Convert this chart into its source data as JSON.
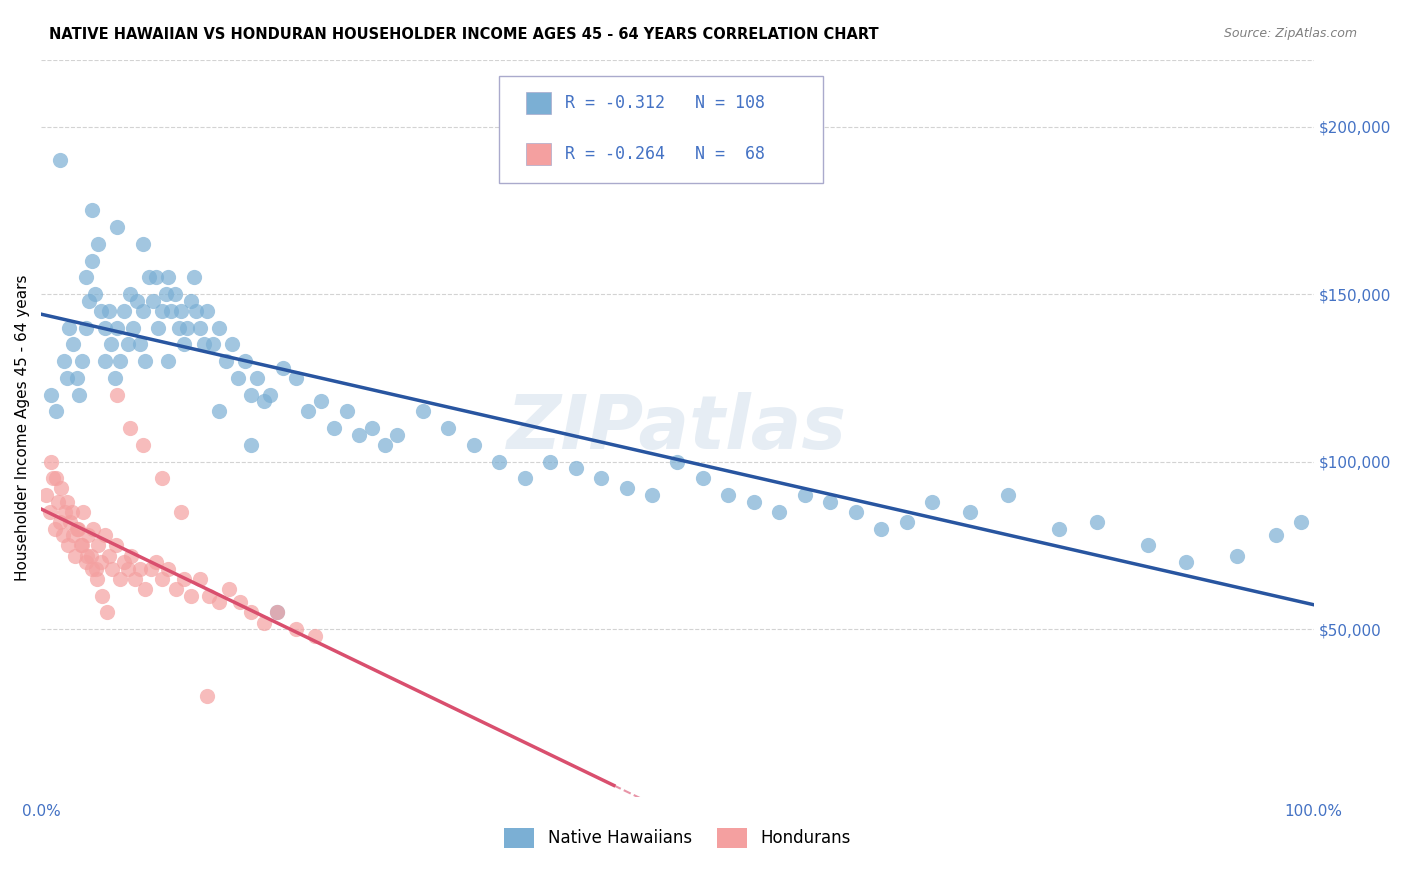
{
  "title": "NATIVE HAWAIIAN VS HONDURAN HOUSEHOLDER INCOME AGES 45 - 64 YEARS CORRELATION CHART",
  "source": "Source: ZipAtlas.com",
  "ylabel": "Householder Income Ages 45 - 64 years",
  "xlim": [
    0.0,
    1.0
  ],
  "ylim": [
    0,
    220000
  ],
  "legend_blue_R": "-0.312",
  "legend_blue_N": "108",
  "legend_pink_R": "-0.264",
  "legend_pink_N": "68",
  "blue_color": "#7bafd4",
  "pink_color": "#f4a0a0",
  "blue_line_color": "#2855a0",
  "pink_line_color": "#d94f6e",
  "tick_color": "#4472c4",
  "watermark": "ZIPatlas",
  "blue_scatter_x": [
    0.008,
    0.012,
    0.018,
    0.02,
    0.022,
    0.025,
    0.028,
    0.03,
    0.032,
    0.035,
    0.035,
    0.038,
    0.04,
    0.042,
    0.045,
    0.047,
    0.05,
    0.05,
    0.053,
    0.055,
    0.058,
    0.06,
    0.062,
    0.065,
    0.068,
    0.07,
    0.072,
    0.075,
    0.078,
    0.08,
    0.082,
    0.085,
    0.088,
    0.09,
    0.092,
    0.095,
    0.098,
    0.1,
    0.102,
    0.105,
    0.108,
    0.11,
    0.112,
    0.115,
    0.118,
    0.12,
    0.122,
    0.125,
    0.128,
    0.13,
    0.135,
    0.14,
    0.145,
    0.15,
    0.155,
    0.16,
    0.165,
    0.17,
    0.175,
    0.18,
    0.19,
    0.2,
    0.21,
    0.22,
    0.23,
    0.24,
    0.25,
    0.26,
    0.27,
    0.28,
    0.3,
    0.32,
    0.34,
    0.36,
    0.38,
    0.4,
    0.42,
    0.44,
    0.46,
    0.48,
    0.5,
    0.52,
    0.54,
    0.56,
    0.58,
    0.6,
    0.62,
    0.64,
    0.66,
    0.68,
    0.7,
    0.73,
    0.76,
    0.8,
    0.83,
    0.87,
    0.9,
    0.94,
    0.97,
    0.99,
    0.015,
    0.04,
    0.06,
    0.08,
    0.1,
    0.14,
    0.165,
    0.185
  ],
  "blue_scatter_y": [
    120000,
    115000,
    130000,
    125000,
    140000,
    135000,
    125000,
    120000,
    130000,
    140000,
    155000,
    148000,
    160000,
    150000,
    165000,
    145000,
    140000,
    130000,
    145000,
    135000,
    125000,
    140000,
    130000,
    145000,
    135000,
    150000,
    140000,
    148000,
    135000,
    145000,
    130000,
    155000,
    148000,
    155000,
    140000,
    145000,
    150000,
    155000,
    145000,
    150000,
    140000,
    145000,
    135000,
    140000,
    148000,
    155000,
    145000,
    140000,
    135000,
    145000,
    135000,
    140000,
    130000,
    135000,
    125000,
    130000,
    120000,
    125000,
    118000,
    120000,
    128000,
    125000,
    115000,
    118000,
    110000,
    115000,
    108000,
    110000,
    105000,
    108000,
    115000,
    110000,
    105000,
    100000,
    95000,
    100000,
    98000,
    95000,
    92000,
    90000,
    100000,
    95000,
    90000,
    88000,
    85000,
    90000,
    88000,
    85000,
    80000,
    82000,
    88000,
    85000,
    90000,
    80000,
    82000,
    75000,
    70000,
    72000,
    78000,
    82000,
    190000,
    175000,
    170000,
    165000,
    130000,
    115000,
    105000,
    55000
  ],
  "pink_scatter_x": [
    0.004,
    0.007,
    0.009,
    0.011,
    0.013,
    0.015,
    0.017,
    0.019,
    0.021,
    0.023,
    0.025,
    0.027,
    0.029,
    0.031,
    0.033,
    0.035,
    0.037,
    0.039,
    0.041,
    0.043,
    0.045,
    0.047,
    0.05,
    0.053,
    0.056,
    0.059,
    0.062,
    0.065,
    0.068,
    0.071,
    0.074,
    0.078,
    0.082,
    0.086,
    0.09,
    0.095,
    0.1,
    0.106,
    0.112,
    0.118,
    0.125,
    0.132,
    0.14,
    0.148,
    0.156,
    0.165,
    0.175,
    0.185,
    0.2,
    0.215,
    0.008,
    0.012,
    0.016,
    0.02,
    0.024,
    0.028,
    0.032,
    0.036,
    0.04,
    0.044,
    0.048,
    0.052,
    0.06,
    0.07,
    0.08,
    0.095,
    0.11,
    0.13
  ],
  "pink_scatter_y": [
    90000,
    85000,
    95000,
    80000,
    88000,
    82000,
    78000,
    85000,
    75000,
    82000,
    78000,
    72000,
    80000,
    75000,
    85000,
    70000,
    78000,
    72000,
    80000,
    68000,
    75000,
    70000,
    78000,
    72000,
    68000,
    75000,
    65000,
    70000,
    68000,
    72000,
    65000,
    68000,
    62000,
    68000,
    70000,
    65000,
    68000,
    62000,
    65000,
    60000,
    65000,
    60000,
    58000,
    62000,
    58000,
    55000,
    52000,
    55000,
    50000,
    48000,
    100000,
    95000,
    92000,
    88000,
    85000,
    80000,
    75000,
    72000,
    68000,
    65000,
    60000,
    55000,
    120000,
    110000,
    105000,
    95000,
    85000,
    30000
  ]
}
